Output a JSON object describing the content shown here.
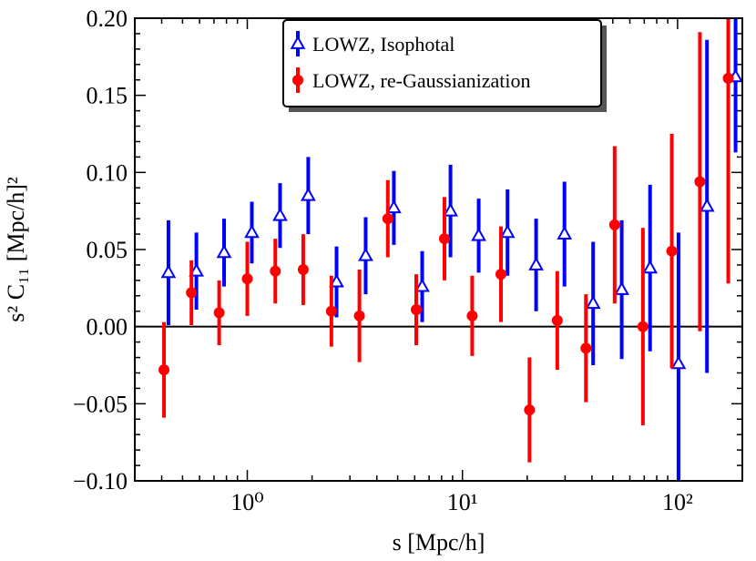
{
  "chart_data": {
    "type": "scatter",
    "xlabel": "s [Mpc/h]",
    "ylabel": "s² C₁₁ [Mpc/h]²",
    "xscale": "log",
    "xlim": [
      0.3,
      200
    ],
    "ylim": [
      -0.1,
      0.2
    ],
    "x_ticks": [
      1,
      10,
      100
    ],
    "x_tick_labels": [
      "10⁰",
      "10¹",
      "10²"
    ],
    "y_ticks": [
      -0.1,
      -0.05,
      0.0,
      0.05,
      0.1,
      0.15,
      0.2
    ],
    "y_tick_labels": [
      "−0.10",
      "−0.05",
      "0.00",
      "0.05",
      "0.10",
      "0.15",
      "0.20"
    ],
    "zero_line": true,
    "grid": false,
    "legend_position": "top-center",
    "series": [
      {
        "name": "LOWZ, Isophotal",
        "color": "#0000ff",
        "marker": "open-triangle",
        "x": [
          0.43,
          0.58,
          0.78,
          1.05,
          1.42,
          1.92,
          2.6,
          3.55,
          4.8,
          6.5,
          8.8,
          11.9,
          16.2,
          22.0,
          29.8,
          40.5,
          55.0,
          74.5,
          101,
          137,
          186
        ],
        "y": [
          0.035,
          0.036,
          0.048,
          0.061,
          0.072,
          0.085,
          0.029,
          0.046,
          0.077,
          0.026,
          0.075,
          0.059,
          0.061,
          0.04,
          0.06,
          0.015,
          0.024,
          0.038,
          -0.024,
          0.078,
          0.162
        ],
        "err": [
          0.034,
          0.025,
          0.022,
          0.02,
          0.021,
          0.025,
          0.023,
          0.025,
          0.024,
          0.023,
          0.03,
          0.024,
          0.028,
          0.03,
          0.034,
          0.04,
          0.045,
          0.054,
          0.085,
          0.108,
          0.049
        ]
      },
      {
        "name": "LOWZ, re-Gaussianization",
        "color": "#ff0000",
        "marker": "filled-circle",
        "x": [
          0.41,
          0.55,
          0.74,
          1.0,
          1.35,
          1.82,
          2.46,
          3.32,
          4.5,
          6.1,
          8.25,
          11.1,
          15.1,
          20.5,
          27.6,
          37.5,
          51,
          69,
          94,
          127,
          172
        ],
        "y": [
          -0.028,
          0.022,
          0.009,
          0.031,
          0.036,
          0.037,
          0.01,
          0.007,
          0.07,
          0.011,
          0.057,
          0.007,
          0.034,
          -0.054,
          0.004,
          -0.014,
          0.066,
          0.0,
          0.049,
          0.094,
          0.161
        ],
        "err": [
          0.031,
          0.021,
          0.021,
          0.024,
          0.021,
          0.023,
          0.023,
          0.03,
          0.025,
          0.023,
          0.027,
          0.026,
          0.031,
          0.034,
          0.032,
          0.035,
          0.051,
          0.064,
          0.076,
          0.097,
          0.133
        ]
      }
    ]
  }
}
